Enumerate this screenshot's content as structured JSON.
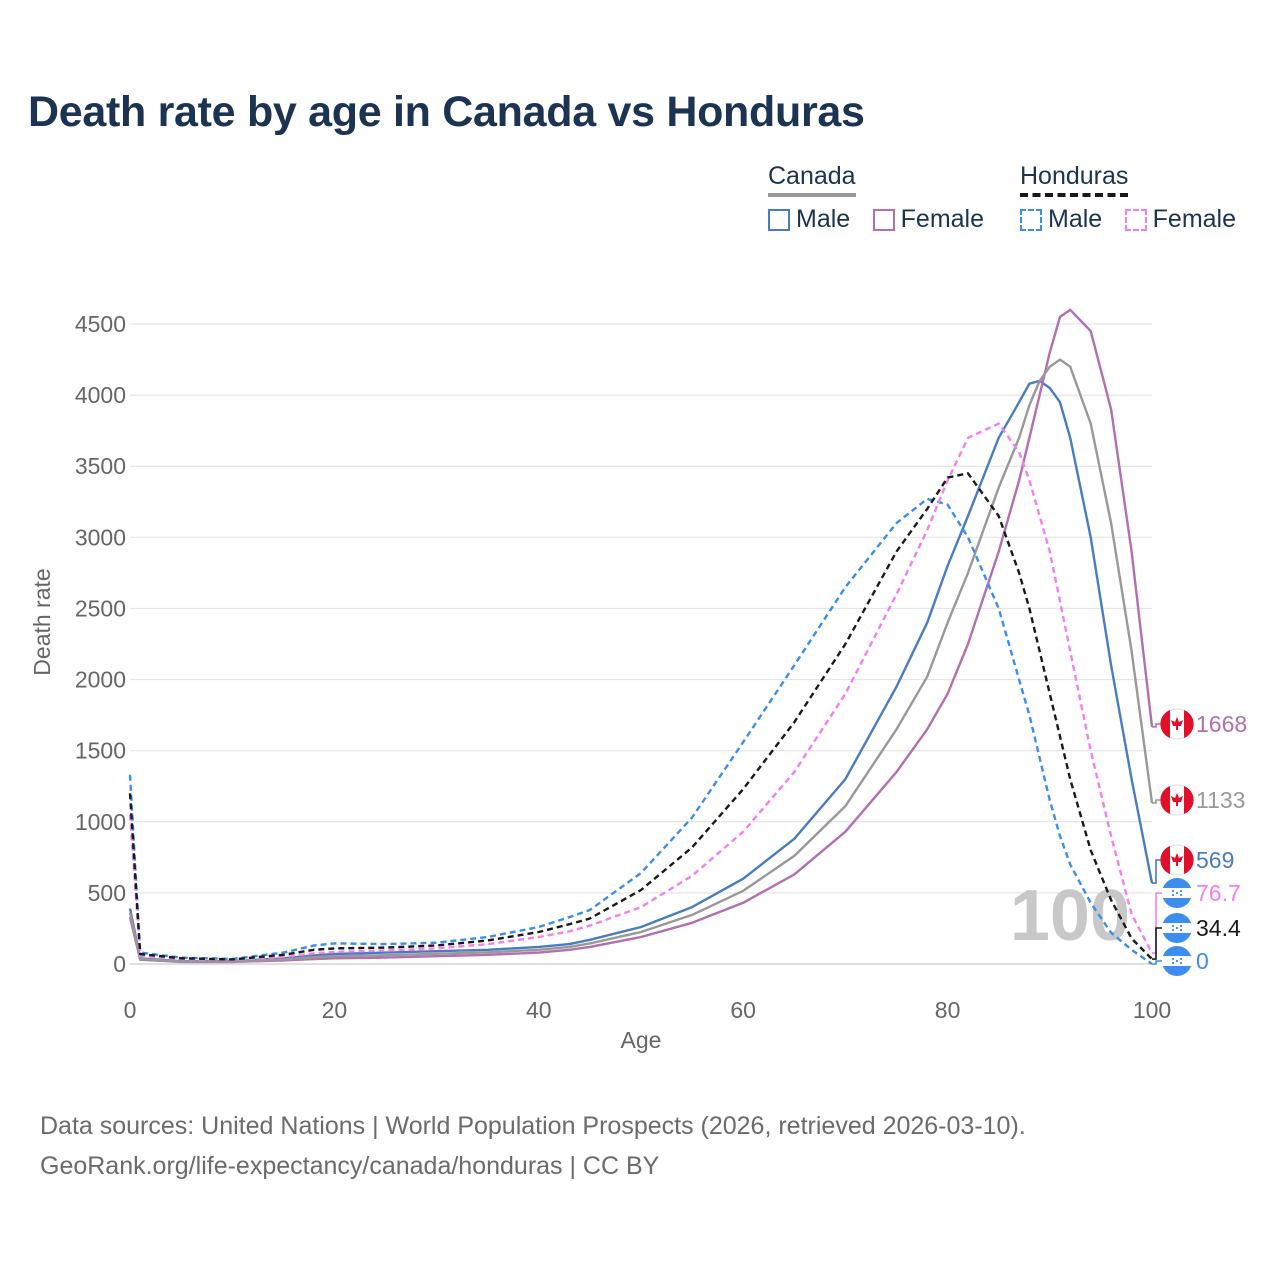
{
  "colors": {
    "title": "#1c3352",
    "canada_male": "#4a7cc0",
    "canada_female": "#b36fb0",
    "canada_total": "#999999",
    "honduras_male": "#3b8ef0",
    "honduras_female": "#f57ef0",
    "honduras_total": "#1a1a1a",
    "axis_text": "#666666",
    "watermark": "#c8c8c8"
  },
  "legend": {
    "canada": {
      "title": "Canada",
      "male": "Male",
      "female": "Female"
    },
    "honduras": {
      "title": "Honduras",
      "male": "Male",
      "female": "Female"
    }
  },
  "end_labels": [
    {
      "value": "1668",
      "series": "canada_female",
      "flag": "canada-flag-icon"
    },
    {
      "value": "1133",
      "series": "canada_total",
      "flag": "canada-flag-icon"
    },
    {
      "value": "569",
      "series": "canada_male",
      "flag": "canada-flag-icon"
    },
    {
      "value": "76.7",
      "series": "honduras_female",
      "flag": "honduras-flag-icon"
    },
    {
      "value": "34.4",
      "series": "honduras_total",
      "flag": "honduras-flag-icon"
    },
    {
      "value": "0",
      "series": "honduras_male",
      "flag": "honduras-flag-icon"
    }
  ],
  "watermark_age": "100",
  "footer": {
    "line1": "Data sources: United Nations | World Population Prospects (2026, retrieved 2026-03-10).",
    "line2": "GeoRank.org/life-expectancy/canada/honduras | CC BY"
  },
  "chart_data": {
    "type": "line",
    "title": "Death rate by age in Canada vs Honduras",
    "xlabel": "Age",
    "ylabel": "Death rate",
    "xlim": [
      0,
      100
    ],
    "ylim": [
      0,
      4700
    ],
    "xticks": [
      0,
      20,
      40,
      60,
      80,
      100
    ],
    "yticks": [
      0,
      500,
      1000,
      1500,
      2000,
      2500,
      3000,
      3500,
      4000,
      4500
    ],
    "grid": true,
    "x": [
      0,
      1,
      5,
      10,
      15,
      18,
      20,
      25,
      30,
      35,
      40,
      43,
      45,
      50,
      55,
      60,
      65,
      70,
      75,
      78,
      80,
      82,
      85,
      87,
      88,
      89,
      90,
      91,
      92,
      94,
      96,
      98,
      100
    ],
    "series": [
      {
        "name": "Canada Male",
        "key": "canada_male",
        "dashed": false,
        "values": [
          390,
          40,
          20,
          20,
          40,
          60,
          70,
          80,
          90,
          100,
          120,
          140,
          170,
          260,
          400,
          600,
          880,
          1300,
          1950,
          2400,
          2800,
          3150,
          3700,
          3950,
          4080,
          4100,
          4050,
          3950,
          3700,
          3000,
          2100,
          1300,
          569
        ]
      },
      {
        "name": "Canada Female",
        "key": "canada_female",
        "dashed": false,
        "values": [
          330,
          30,
          15,
          15,
          25,
          35,
          40,
          45,
          55,
          65,
          80,
          100,
          120,
          190,
          290,
          430,
          630,
          930,
          1350,
          1650,
          1900,
          2250,
          2900,
          3400,
          3700,
          4000,
          4300,
          4550,
          4600,
          4450,
          3900,
          2900,
          1668
        ]
      },
      {
        "name": "Canada Total",
        "key": "canada_total",
        "dashed": false,
        "values": [
          360,
          35,
          18,
          18,
          32,
          48,
          55,
          62,
          72,
          82,
          100,
          120,
          145,
          225,
          345,
          515,
          760,
          1110,
          1650,
          2020,
          2400,
          2750,
          3350,
          3700,
          3930,
          4100,
          4200,
          4250,
          4200,
          3800,
          3100,
          2200,
          1133
        ]
      },
      {
        "name": "Honduras Male",
        "key": "honduras_male",
        "dashed": true,
        "values": [
          1330,
          80,
          45,
          35,
          80,
          130,
          145,
          140,
          150,
          190,
          260,
          330,
          380,
          640,
          1030,
          1560,
          2100,
          2650,
          3100,
          3270,
          3230,
          3000,
          2500,
          2000,
          1750,
          1450,
          1150,
          900,
          700,
          430,
          220,
          100,
          0
        ]
      },
      {
        "name": "Honduras Female",
        "key": "honduras_female",
        "dashed": true,
        "values": [
          1050,
          60,
          35,
          30,
          50,
          75,
          85,
          95,
          110,
          140,
          190,
          230,
          270,
          400,
          620,
          930,
          1350,
          1900,
          2600,
          3050,
          3400,
          3700,
          3800,
          3600,
          3400,
          3150,
          2900,
          2550,
          2200,
          1500,
          900,
          350,
          76.7
        ]
      },
      {
        "name": "Honduras Total",
        "key": "honduras_total",
        "dashed": true,
        "values": [
          1200,
          70,
          40,
          32,
          65,
          100,
          110,
          115,
          130,
          165,
          225,
          280,
          320,
          520,
          820,
          1230,
          1700,
          2250,
          2900,
          3200,
          3420,
          3450,
          3150,
          2750,
          2500,
          2200,
          1900,
          1600,
          1300,
          800,
          450,
          180,
          34.4
        ]
      }
    ]
  }
}
